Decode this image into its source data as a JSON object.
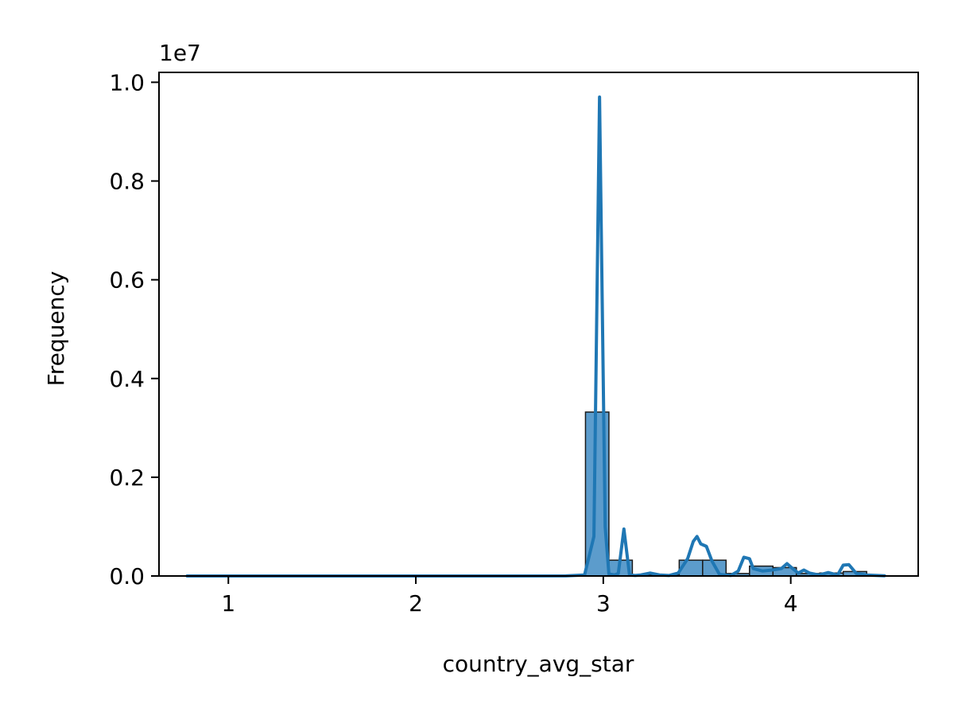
{
  "chart_data": {
    "type": "histogram",
    "xlabel": "country_avg_star",
    "ylabel": "Frequency",
    "y_offset_label": "1e7",
    "xlim": [
      0.63,
      4.68
    ],
    "ylim": [
      0,
      10200000
    ],
    "x_ticks": [
      {
        "value": 1,
        "label": "1"
      },
      {
        "value": 2,
        "label": "2"
      },
      {
        "value": 3,
        "label": "3"
      },
      {
        "value": 4,
        "label": "4"
      }
    ],
    "y_ticks": [
      {
        "value": 0,
        "label": "0.0"
      },
      {
        "value": 2000000,
        "label": "0.2"
      },
      {
        "value": 4000000,
        "label": "0.4"
      },
      {
        "value": 6000000,
        "label": "0.6"
      },
      {
        "value": 8000000,
        "label": "0.8"
      },
      {
        "value": 10000000,
        "label": "1.0"
      }
    ],
    "bins": [
      {
        "x0": 0.78,
        "x1": 0.905,
        "value": 0
      },
      {
        "x0": 0.905,
        "x1": 1.03,
        "value": 0
      },
      {
        "x0": 1.03,
        "x1": 1.155,
        "value": 0
      },
      {
        "x0": 1.155,
        "x1": 1.28,
        "value": 0
      },
      {
        "x0": 1.28,
        "x1": 1.405,
        "value": 0
      },
      {
        "x0": 1.405,
        "x1": 1.53,
        "value": 0
      },
      {
        "x0": 1.53,
        "x1": 1.655,
        "value": 0
      },
      {
        "x0": 1.655,
        "x1": 1.78,
        "value": 0
      },
      {
        "x0": 1.78,
        "x1": 1.905,
        "value": 0
      },
      {
        "x0": 1.905,
        "x1": 2.03,
        "value": 0
      },
      {
        "x0": 2.03,
        "x1": 2.155,
        "value": 0
      },
      {
        "x0": 2.155,
        "x1": 2.28,
        "value": 0
      },
      {
        "x0": 2.28,
        "x1": 2.405,
        "value": 0
      },
      {
        "x0": 2.405,
        "x1": 2.53,
        "value": 0
      },
      {
        "x0": 2.53,
        "x1": 2.655,
        "value": 0
      },
      {
        "x0": 2.655,
        "x1": 2.78,
        "value": 0
      },
      {
        "x0": 2.78,
        "x1": 2.905,
        "value": 5000
      },
      {
        "x0": 2.905,
        "x1": 3.03,
        "value": 3320000
      },
      {
        "x0": 3.03,
        "x1": 3.155,
        "value": 320000
      },
      {
        "x0": 3.155,
        "x1": 3.28,
        "value": 20000
      },
      {
        "x0": 3.28,
        "x1": 3.405,
        "value": 20000
      },
      {
        "x0": 3.405,
        "x1": 3.53,
        "value": 320000
      },
      {
        "x0": 3.53,
        "x1": 3.655,
        "value": 320000
      },
      {
        "x0": 3.655,
        "x1": 3.78,
        "value": 50000
      },
      {
        "x0": 3.78,
        "x1": 3.905,
        "value": 200000
      },
      {
        "x0": 3.905,
        "x1": 4.03,
        "value": 170000
      },
      {
        "x0": 4.03,
        "x1": 4.155,
        "value": 50000
      },
      {
        "x0": 4.155,
        "x1": 4.28,
        "value": 60000
      },
      {
        "x0": 4.28,
        "x1": 4.405,
        "value": 90000
      },
      {
        "x0": 4.405,
        "x1": 4.5,
        "value": 10000
      }
    ],
    "kde": {
      "x": [
        0.78,
        1.5,
        2.0,
        2.5,
        2.8,
        2.9,
        2.95,
        2.98,
        3.01,
        3.03,
        3.06,
        3.08,
        3.11,
        3.14,
        3.17,
        3.2,
        3.25,
        3.3,
        3.35,
        3.4,
        3.45,
        3.48,
        3.5,
        3.52,
        3.55,
        3.58,
        3.62,
        3.68,
        3.72,
        3.75,
        3.78,
        3.8,
        3.85,
        3.9,
        3.95,
        3.98,
        4.01,
        4.04,
        4.07,
        4.1,
        4.15,
        4.2,
        4.25,
        4.28,
        4.31,
        4.35,
        4.4,
        4.5
      ],
      "y": [
        0,
        0,
        0,
        0,
        2000,
        20000,
        800000,
        9700000,
        1000000,
        40000,
        20000,
        50000,
        950000,
        20000,
        10000,
        20000,
        60000,
        20000,
        10000,
        60000,
        350000,
        700000,
        800000,
        650000,
        600000,
        300000,
        30000,
        10000,
        100000,
        380000,
        350000,
        150000,
        100000,
        120000,
        150000,
        250000,
        150000,
        60000,
        120000,
        60000,
        20000,
        70000,
        20000,
        220000,
        230000,
        50000,
        20000,
        5000
      ]
    },
    "bar_fill": "#5c9ccc",
    "bar_edge": "#1a1a1a",
    "line_color": "#1f77b4",
    "grid": false,
    "legend": "none"
  }
}
